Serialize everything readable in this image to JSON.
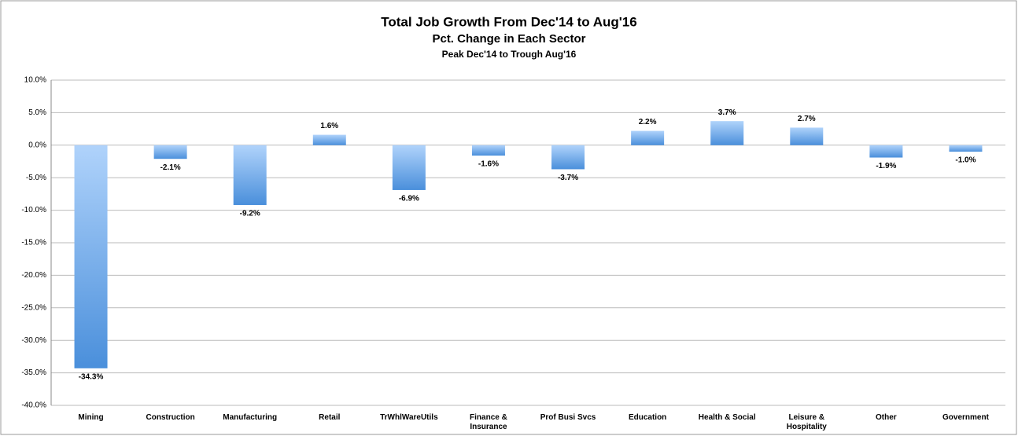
{
  "chart_data": {
    "type": "bar",
    "title": "Total Job Growth From Dec'14 to Aug'16",
    "subtitle": "Pct. Change in Each Sector",
    "note": "Peak Dec'14 to Trough Aug'16",
    "categories": [
      "Mining",
      "Construction",
      "Manufacturing",
      "Retail",
      "TrWhlWareUtils",
      "Finance & Insurance",
      "Prof Busi Svcs",
      "Education",
      "Health & Social",
      "Leisure & Hospitality",
      "Other",
      "Government"
    ],
    "values": [
      -34.3,
      -2.1,
      -9.2,
      1.6,
      -6.9,
      -1.6,
      -3.7,
      2.2,
      3.7,
      2.7,
      -1.9,
      -1.0
    ],
    "value_labels": [
      "-34.3%",
      "-2.1%",
      "-9.2%",
      "1.6%",
      "-6.9%",
      "-1.6%",
      "-3.7%",
      "2.2%",
      "3.7%",
      "2.7%",
      "-1.9%",
      "-1.0%"
    ],
    "color": "#4a8fdb",
    "color_light": "#b0d3fb",
    "ylim": [
      -40,
      10
    ],
    "yticks": [
      {
        "value": -40,
        "label": "-40.0%"
      },
      {
        "value": -35,
        "label": "-35.0%"
      },
      {
        "value": -30,
        "label": "-30.0%"
      },
      {
        "value": -25,
        "label": "-25.0%"
      },
      {
        "value": -20,
        "label": "-20.0%"
      },
      {
        "value": -15,
        "label": "-15.0%"
      },
      {
        "value": -10,
        "label": "-10.0%"
      },
      {
        "value": -5,
        "label": "-5.0%"
      },
      {
        "value": 0,
        "label": "0.0%"
      },
      {
        "value": 5,
        "label": "5.0%"
      },
      {
        "value": 10,
        "label": "10.0%"
      }
    ],
    "grid": true
  }
}
